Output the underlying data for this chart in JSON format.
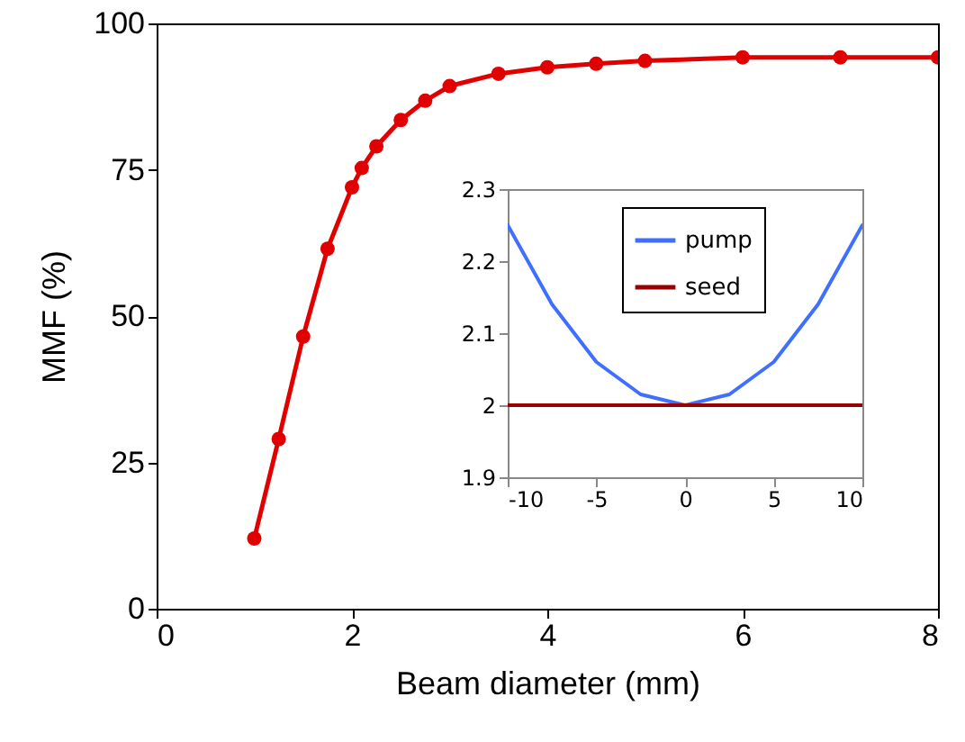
{
  "chart_data": [
    {
      "type": "line",
      "xlabel": "Beam diameter (mm)",
      "ylabel": "MMF (%)",
      "x": [
        1,
        1.25,
        1.5,
        1.75,
        2,
        2.1,
        2.25,
        2.5,
        2.75,
        3,
        3.5,
        4,
        4.5,
        5,
        6,
        7,
        8
      ],
      "series": [
        {
          "color": "#e00000",
          "values": [
            12,
            29,
            46.5,
            61.5,
            72,
            75.3,
            79,
            83.5,
            86.8,
            89.3,
            91.4,
            92.5,
            93.1,
            93.6,
            94.2,
            94.2,
            94.2
          ]
        }
      ],
      "xlim": [
        0,
        8
      ],
      "xticks": [
        0,
        2,
        4,
        6,
        8
      ],
      "ylim": [
        0,
        100
      ],
      "yticks": [
        0,
        25,
        50,
        75,
        100
      ],
      "marker": "circle"
    },
    {
      "type": "line",
      "x": [
        -10,
        -7.5,
        -5,
        -2.5,
        0,
        2.5,
        5,
        7.5,
        10
      ],
      "series": [
        {
          "name": "pump",
          "color": "#3f6fff",
          "values": [
            2.25,
            2.14,
            2.06,
            2.015,
            2,
            2.015,
            2.06,
            2.14,
            2.25
          ]
        },
        {
          "name": "seed",
          "color": "#990000",
          "values": [
            2,
            2,
            2,
            2,
            2,
            2,
            2,
            2,
            2
          ]
        }
      ],
      "xlim": [
        -10,
        10
      ],
      "xticks": [
        -10,
        -5,
        0,
        5,
        10
      ],
      "ylim": [
        1.9,
        2.3
      ],
      "yticks": [
        1.9,
        2,
        2.1,
        2.2,
        2.3
      ],
      "legend": "top"
    }
  ]
}
